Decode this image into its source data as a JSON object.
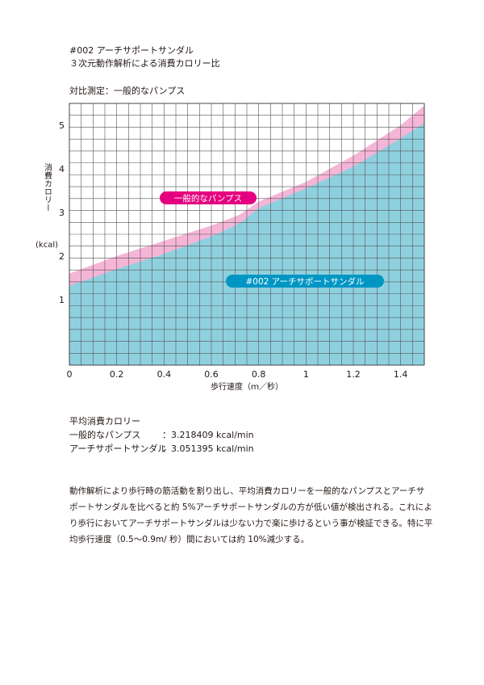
{
  "header": {
    "title": "#002 アーチサポートサンダル",
    "subtitle": "３次元動作解析による消費カロリー比",
    "comparison": "対比測定：一般的なパンプス"
  },
  "colors": {
    "pumps_band": "#f5b5d7",
    "sandal_area": "#8fd0df",
    "pumps_label_bg": "#e4007f",
    "sandal_label_bg": "#0096c4",
    "grid": "#555555"
  },
  "chart_data": {
    "type": "area",
    "xlabel": "歩行速度（ｍ／秒）",
    "ylabel": "消費カロリー",
    "yunit": "(kcal)",
    "xlim": [
      0,
      1.5
    ],
    "ylim": [
      -0.5,
      5.5
    ],
    "xticks": [
      "0",
      "0.2",
      "0.4",
      "0.6",
      "0.8",
      "1",
      "1.2",
      "1.4"
    ],
    "xtick_values": [
      0,
      0.2,
      0.4,
      0.6,
      0.8,
      1.0,
      1.2,
      1.4
    ],
    "yticks": [
      "1",
      "2",
      "3",
      "4",
      "5"
    ],
    "ytick_values": [
      1,
      2,
      3,
      4,
      5
    ],
    "grid": true,
    "series": [
      {
        "name": "一般的なパンプス",
        "x": [
          0,
          0.2,
          0.4,
          0.6,
          0.72,
          0.8,
          1.0,
          1.2,
          1.4,
          1.5
        ],
        "y": [
          1.6,
          2.0,
          2.35,
          2.7,
          2.95,
          3.25,
          3.7,
          4.3,
          5.0,
          5.45
        ]
      },
      {
        "name": "#002 アーチサポートサンダル",
        "x": [
          0,
          0.2,
          0.4,
          0.6,
          0.72,
          0.8,
          1.0,
          1.2,
          1.4,
          1.5
        ],
        "y": [
          1.32,
          1.7,
          2.05,
          2.45,
          2.75,
          3.1,
          3.55,
          4.05,
          4.7,
          5.05
        ]
      }
    ]
  },
  "averages": {
    "heading": "平均消費カロリー",
    "rows": [
      {
        "label": "一般的なパンプス",
        "value": "：3.218409 kcal/min"
      },
      {
        "label": "アーチサポートサンダル",
        "value": "：3.051395 kcal/min"
      }
    ]
  },
  "description": [
    "動作解析により歩行時の筋活動を割り出し、平均消費カロリーを一般的なパンプスとアーチサ",
    "ポートサンダルを比べると約  5%アーチサポートサンダルの方が低い値が検出される。これによ",
    "り歩行においてアーチサポートサンダルは少ない力で楽に歩けるという事が検証できる。特に平",
    "均歩行速度（0.5〜0.9m/ 秒）間においては約 10%減少する。"
  ]
}
